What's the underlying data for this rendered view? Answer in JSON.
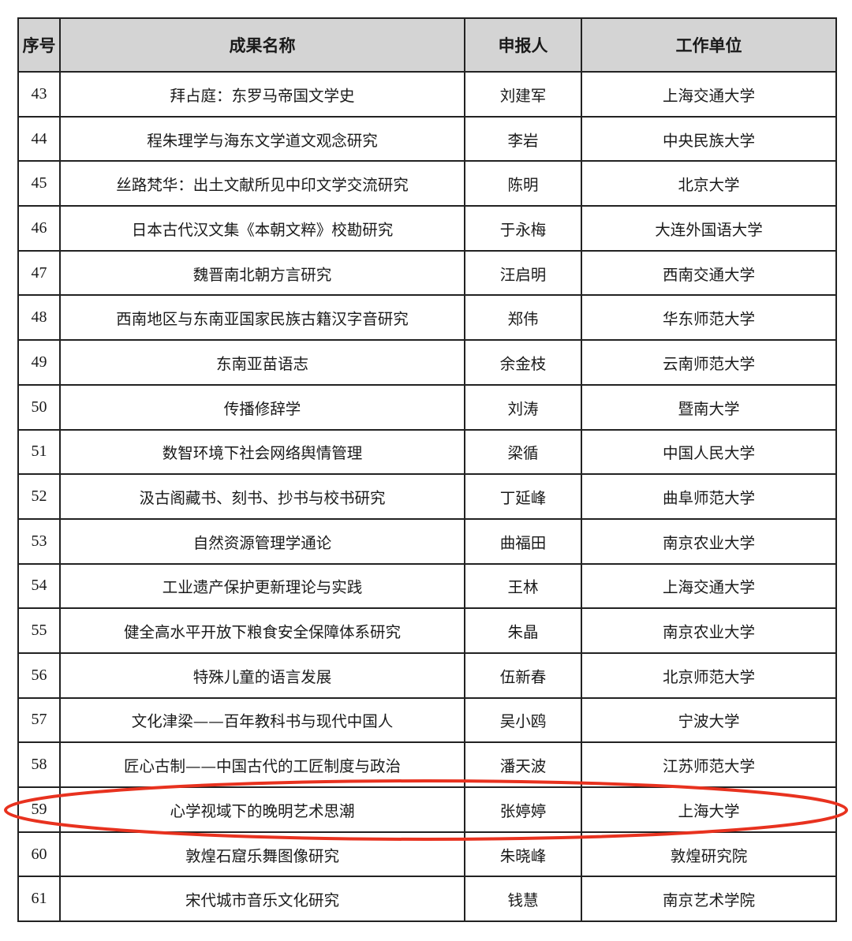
{
  "table": {
    "headers": [
      "序号",
      "成果名称",
      "申报人",
      "工作单位"
    ],
    "rows": [
      [
        "43",
        "拜占庭：东罗马帝国文学史",
        "刘建军",
        "上海交通大学"
      ],
      [
        "44",
        "程朱理学与海东文学道文观念研究",
        "李岩",
        "中央民族大学"
      ],
      [
        "45",
        "丝路梵华：出土文献所见中印文学交流研究",
        "陈明",
        "北京大学"
      ],
      [
        "46",
        "日本古代汉文集《本朝文粹》校勘研究",
        "于永梅",
        "大连外国语大学"
      ],
      [
        "47",
        "魏晋南北朝方言研究",
        "汪启明",
        "西南交通大学"
      ],
      [
        "48",
        "西南地区与东南亚国家民族古籍汉字音研究",
        "郑伟",
        "华东师范大学"
      ],
      [
        "49",
        "东南亚苗语志",
        "余金枝",
        "云南师范大学"
      ],
      [
        "50",
        "传播修辞学",
        "刘涛",
        "暨南大学"
      ],
      [
        "51",
        "数智环境下社会网络舆情管理",
        "梁循",
        "中国人民大学"
      ],
      [
        "52",
        "汲古阁藏书、刻书、抄书与校书研究",
        "丁延峰",
        "曲阜师范大学"
      ],
      [
        "53",
        "自然资源管理学通论",
        "曲福田",
        "南京农业大学"
      ],
      [
        "54",
        "工业遗产保护更新理论与实践",
        "王林",
        "上海交通大学"
      ],
      [
        "55",
        "健全高水平开放下粮食安全保障体系研究",
        "朱晶",
        "南京农业大学"
      ],
      [
        "56",
        "特殊儿童的语言发展",
        "伍新春",
        "北京师范大学"
      ],
      [
        "57",
        "文化津梁——百年教科书与现代中国人",
        "吴小鸥",
        "宁波大学"
      ],
      [
        "58",
        "匠心古制——中国古代的工匠制度与政治",
        "潘天波",
        "江苏师范大学"
      ],
      [
        "59",
        "心学视域下的晚明艺术思潮",
        "张婷婷",
        "上海大学"
      ],
      [
        "60",
        "敦煌石窟乐舞图像研究",
        "朱晓峰",
        "敦煌研究院"
      ],
      [
        "61",
        "宋代城市音乐文化研究",
        "钱慧",
        "南京艺术学院"
      ]
    ],
    "highlighted_row": "59",
    "highlight_color": "#e8321f",
    "header_bg": "#d4d4d4"
  }
}
